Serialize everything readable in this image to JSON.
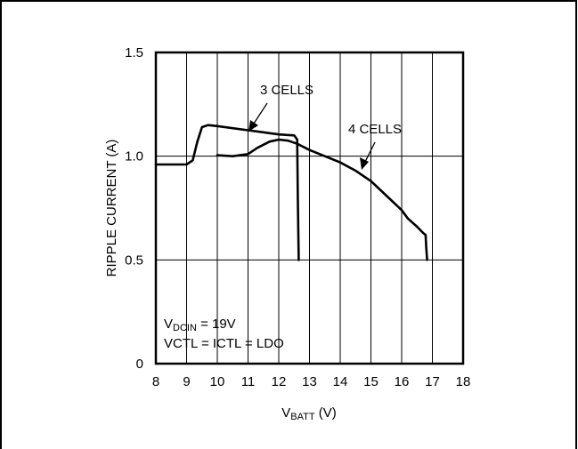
{
  "chart_data": {
    "type": "line",
    "xlabel_main": "V",
    "xlabel_sub": "BATT",
    "xlabel_unit": " (V)",
    "ylabel": "RIPPLE CURRENT (A)",
    "xlim": [
      8,
      18
    ],
    "ylim": [
      0,
      1.5
    ],
    "x_ticks": [
      8,
      9,
      10,
      11,
      12,
      13,
      14,
      15,
      16,
      17,
      18
    ],
    "y_ticks": [
      0,
      0.5,
      1.0,
      1.5
    ],
    "y_tick_labels": [
      "0",
      "0.5",
      "1.0",
      "1.5"
    ],
    "grid": true,
    "series": [
      {
        "name": "3 CELLS",
        "x": [
          8.0,
          8.5,
          9.0,
          9.2,
          9.35,
          9.5,
          9.7,
          10.0,
          10.5,
          11.0,
          11.5,
          12.0,
          12.5,
          12.6,
          12.62,
          12.65
        ],
        "y": [
          0.96,
          0.96,
          0.96,
          0.98,
          1.07,
          1.14,
          1.15,
          1.145,
          1.135,
          1.125,
          1.115,
          1.105,
          1.1,
          1.08,
          0.8,
          0.5
        ]
      },
      {
        "name": "4 CELLS",
        "x": [
          10.0,
          10.5,
          11.0,
          11.3,
          11.7,
          12.0,
          12.3,
          12.6,
          13.0,
          13.5,
          14.0,
          14.5,
          15.0,
          15.5,
          16.0,
          16.2,
          16.5,
          16.7,
          16.78,
          16.8,
          16.83
        ],
        "y": [
          1.005,
          1.0,
          1.01,
          1.04,
          1.07,
          1.08,
          1.075,
          1.06,
          1.03,
          1.0,
          0.97,
          0.93,
          0.88,
          0.81,
          0.74,
          0.7,
          0.66,
          0.63,
          0.62,
          0.56,
          0.5
        ]
      }
    ],
    "annotations": [
      {
        "text": "3 CELLS",
        "x": 12.0,
        "y": 1.3
      },
      {
        "text": "4 CELLS",
        "x": 15.0,
        "y": 1.13
      }
    ],
    "conditions": {
      "line1_main": "V",
      "line1_sub": "DCIN",
      "line1_rest": " = 19V",
      "line2": "VCTL = ICTL = LDO"
    }
  }
}
